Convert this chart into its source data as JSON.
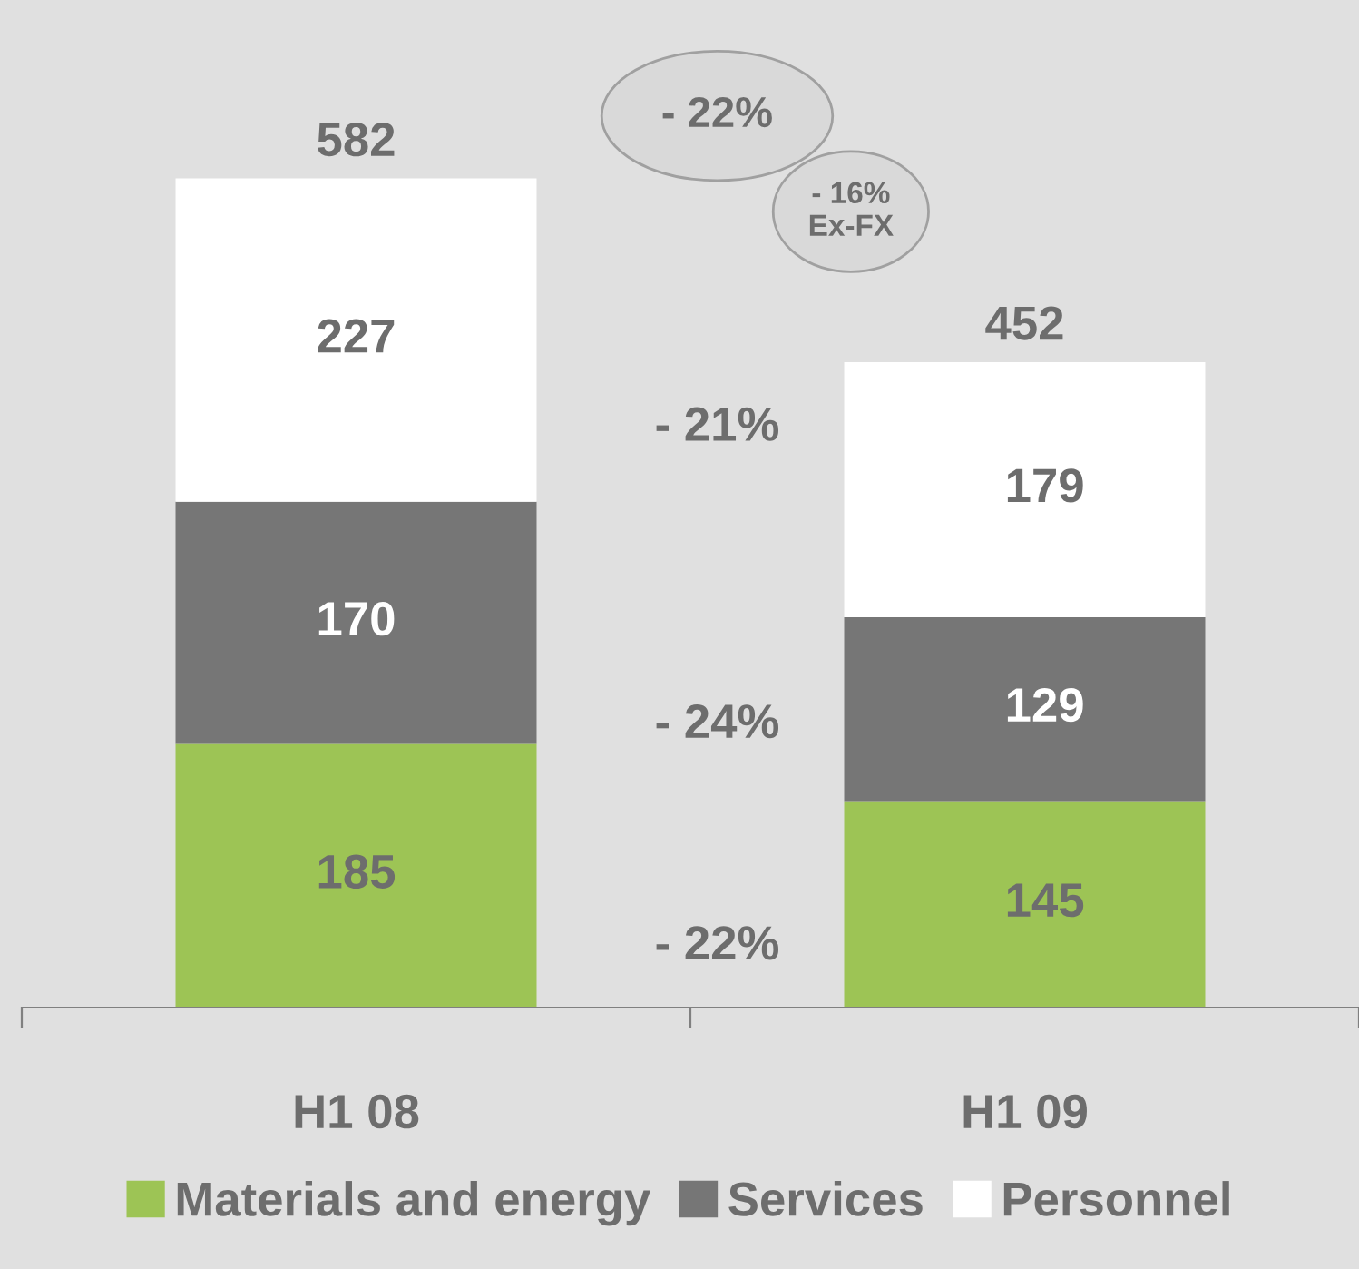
{
  "chart_data": {
    "type": "bar",
    "stacked": true,
    "categories": [
      "H1 08",
      "H1 09"
    ],
    "series": [
      {
        "name": "Materials and energy",
        "color": "#9dc455",
        "values": [
          185,
          145
        ]
      },
      {
        "name": "Services",
        "color": "#767676",
        "values": [
          170,
          129
        ]
      },
      {
        "name": "Personnel",
        "color": "#ffffff",
        "values": [
          227,
          179
        ]
      }
    ],
    "data_labels": true,
    "totals": [
      "582",
      "452"
    ],
    "annotations": [
      "- 22%",
      "- 16%\nEx-FX",
      "- 21%",
      "- 24%",
      "- 22%"
    ],
    "legend": "bottom",
    "grid": false
  }
}
